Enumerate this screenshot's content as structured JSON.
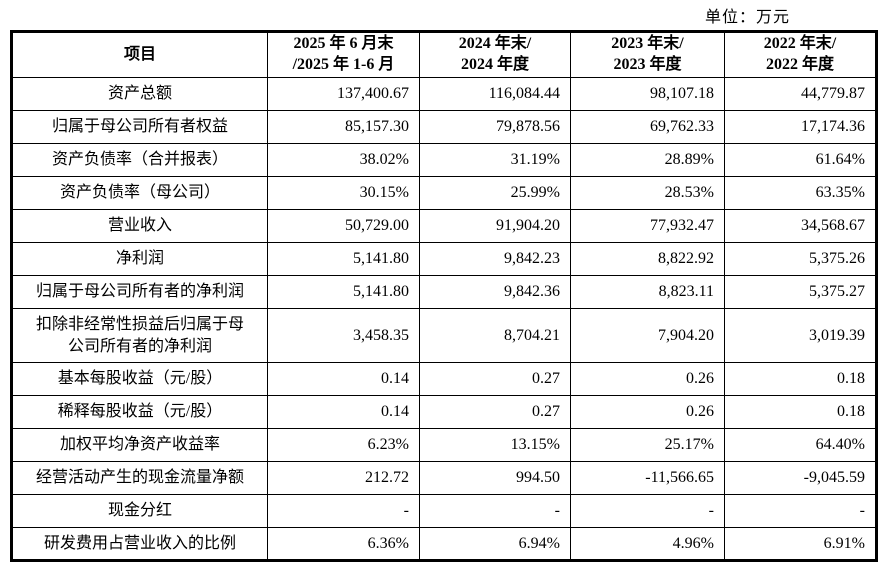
{
  "unit_label": "单位：万元",
  "table": {
    "columns": [
      {
        "label": "项目"
      },
      {
        "line1": "2025 年 6 月末",
        "line2": "/2025 年 1-6 月"
      },
      {
        "line1": "2024 年末/",
        "line2": "2024 年度"
      },
      {
        "line1": "2023 年末/",
        "line2": "2023 年度"
      },
      {
        "line1": "2022 年末/",
        "line2": "2022 年度"
      }
    ],
    "rows": [
      {
        "label": "资产总额",
        "values": [
          "137,400.67",
          "116,084.44",
          "98,107.18",
          "44,779.87"
        ]
      },
      {
        "label": "归属于母公司所有者权益",
        "values": [
          "85,157.30",
          "79,878.56",
          "69,762.33",
          "17,174.36"
        ]
      },
      {
        "label": "资产负债率（合并报表）",
        "values": [
          "38.02%",
          "31.19%",
          "28.89%",
          "61.64%"
        ]
      },
      {
        "label": "资产负债率（母公司）",
        "values": [
          "30.15%",
          "25.99%",
          "28.53%",
          "63.35%"
        ]
      },
      {
        "label": "营业收入",
        "values": [
          "50,729.00",
          "91,904.20",
          "77,932.47",
          "34,568.67"
        ]
      },
      {
        "label": "净利润",
        "values": [
          "5,141.80",
          "9,842.23",
          "8,822.92",
          "5,375.26"
        ]
      },
      {
        "label": "归属于母公司所有者的净利润",
        "values": [
          "5,141.80",
          "9,842.36",
          "8,823.11",
          "5,375.27"
        ]
      },
      {
        "label": "扣除非经常性损益后归属于母公司所有者的净利润",
        "values": [
          "3,458.35",
          "8,704.21",
          "7,904.20",
          "3,019.39"
        ]
      },
      {
        "label": "基本每股收益（元/股）",
        "values": [
          "0.14",
          "0.27",
          "0.26",
          "0.18"
        ]
      },
      {
        "label": "稀释每股收益（元/股）",
        "values": [
          "0.14",
          "0.27",
          "0.26",
          "0.18"
        ]
      },
      {
        "label": "加权平均净资产收益率",
        "values": [
          "6.23%",
          "13.15%",
          "25.17%",
          "64.40%"
        ]
      },
      {
        "label": "经营活动产生的现金流量净额",
        "values": [
          "212.72",
          "994.50",
          "-11,566.65",
          "-9,045.59"
        ]
      },
      {
        "label": "现金分红",
        "values": [
          "-",
          "-",
          "-",
          "-"
        ]
      },
      {
        "label": "研发费用占营业收入的比例",
        "values": [
          "6.36%",
          "6.94%",
          "4.96%",
          "6.91%"
        ]
      }
    ]
  }
}
